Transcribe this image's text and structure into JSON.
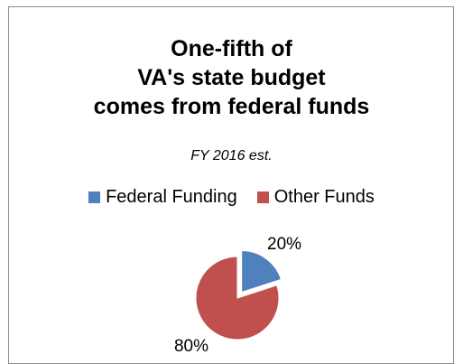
{
  "chart_data": {
    "type": "pie",
    "title_lines": [
      "One-fifth of",
      "VA's state budget",
      "comes from federal funds"
    ],
    "subtitle": "FY 2016 est.",
    "legend_position": "top",
    "categories": [
      "Federal Funding",
      "Other Funds"
    ],
    "values": [
      20,
      80
    ],
    "data_labels": [
      "20%",
      "80%"
    ],
    "colors": [
      "#4f81bd",
      "#c0504d"
    ],
    "exploded_slice": "Federal Funding"
  }
}
